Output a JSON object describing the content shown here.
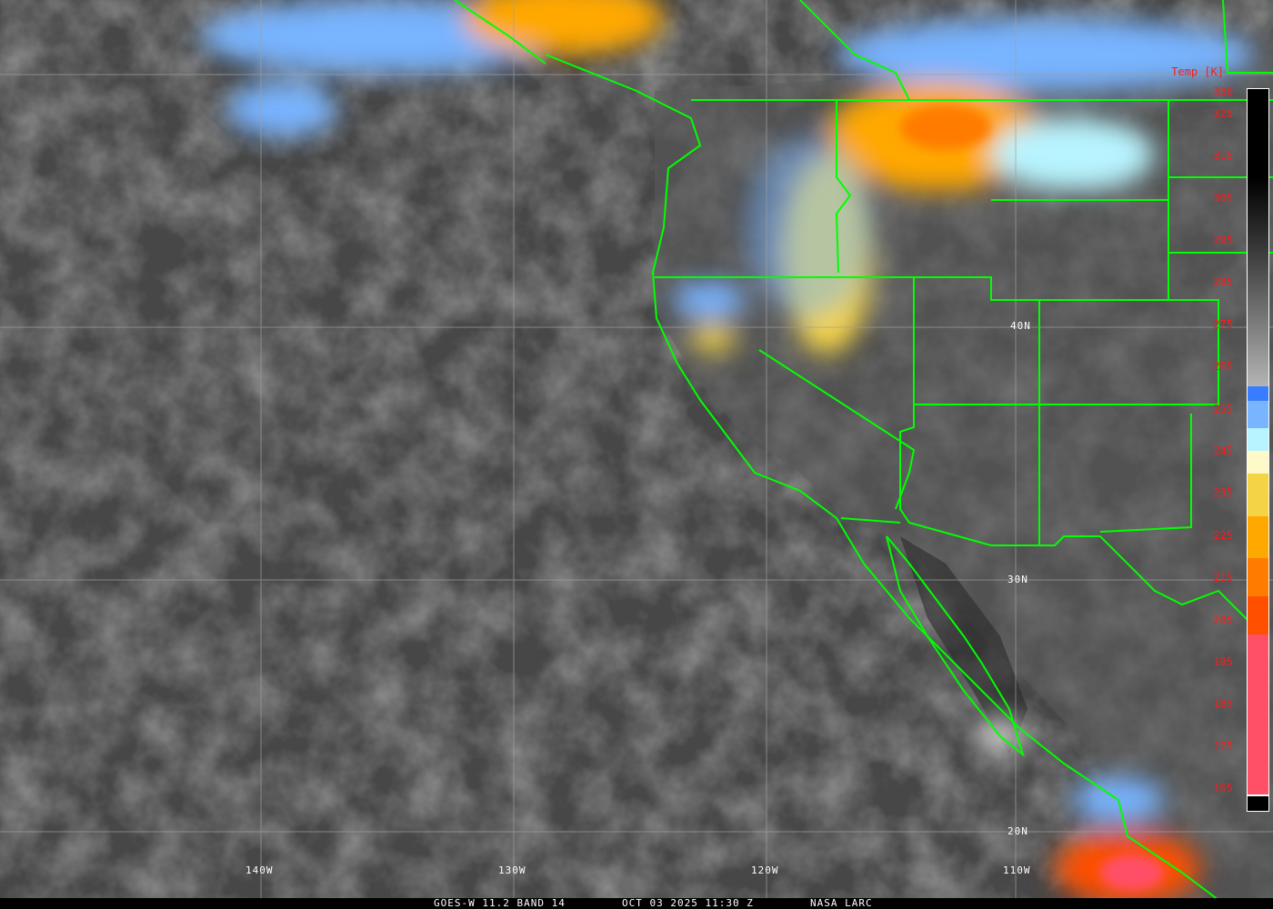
{
  "footer": {
    "satellite": "GOES-W 11.2 BAND 14",
    "datetime": "OCT 03 2025 11:30 Z",
    "credit": "NASA LARC"
  },
  "colorbar": {
    "title": "Temp [K]",
    "ticks": [
      "330",
      "325",
      "315",
      "305",
      "295",
      "285",
      "275",
      "265",
      "255",
      "245",
      "235",
      "225",
      "215",
      "205",
      "195",
      "185",
      "175",
      "165"
    ],
    "colors": {
      "cold_blue": "#3a7cff",
      "light_blue": "#78b4ff",
      "pale_cyan": "#b8f4ff",
      "pale_yellow": "#fff8c8",
      "yellow": "#f4d444",
      "orange": "#ffa800",
      "dark_orange": "#ff7c00",
      "red_orange": "#ff5000",
      "pink": "#ff5068"
    }
  },
  "grid": {
    "lon_labels": [
      "140W",
      "130W",
      "120W",
      "110W"
    ],
    "lat_labels": [
      "40N",
      "30N",
      "20N"
    ],
    "line_color": "#a0a0a0",
    "border_color": "#00ff00"
  }
}
